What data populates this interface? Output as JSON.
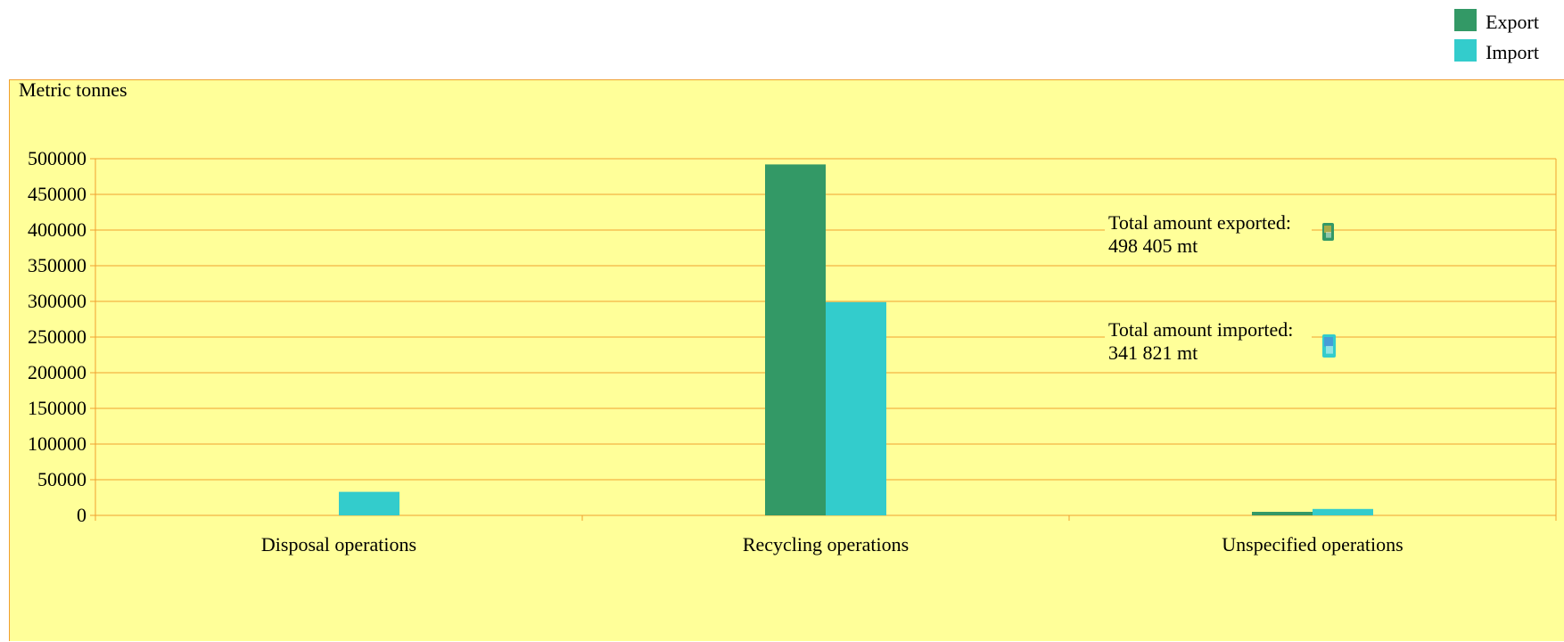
{
  "chart_data": {
    "type": "bar",
    "title": "",
    "xlabel": "",
    "ylabel": "Metric tonnes",
    "categories": [
      "Disposal operations",
      "Recycling operations",
      "Unspecified operations"
    ],
    "series": [
      {
        "name": "Export",
        "color": "#339966",
        "values": [
          0,
          492000,
          5000
        ]
      },
      {
        "name": "Import",
        "color": "#33cccc",
        "values": [
          33000,
          299000,
          9000
        ]
      }
    ],
    "ylim": [
      0,
      500000
    ],
    "yticks": [
      0,
      50000,
      100000,
      150000,
      200000,
      250000,
      300000,
      350000,
      400000,
      450000,
      500000
    ],
    "grid": true,
    "legend_position": "top-right",
    "annotations": [
      {
        "line1": "Total amount exported:",
        "line2": "498 405 mt",
        "icon": "export-container-icon"
      },
      {
        "line1": "Total amount imported:",
        "line2": "341 821 mt",
        "icon": "import-container-icon"
      }
    ],
    "colors": {
      "plot_background": "#ffff99",
      "gridline": "#f0a030"
    }
  }
}
